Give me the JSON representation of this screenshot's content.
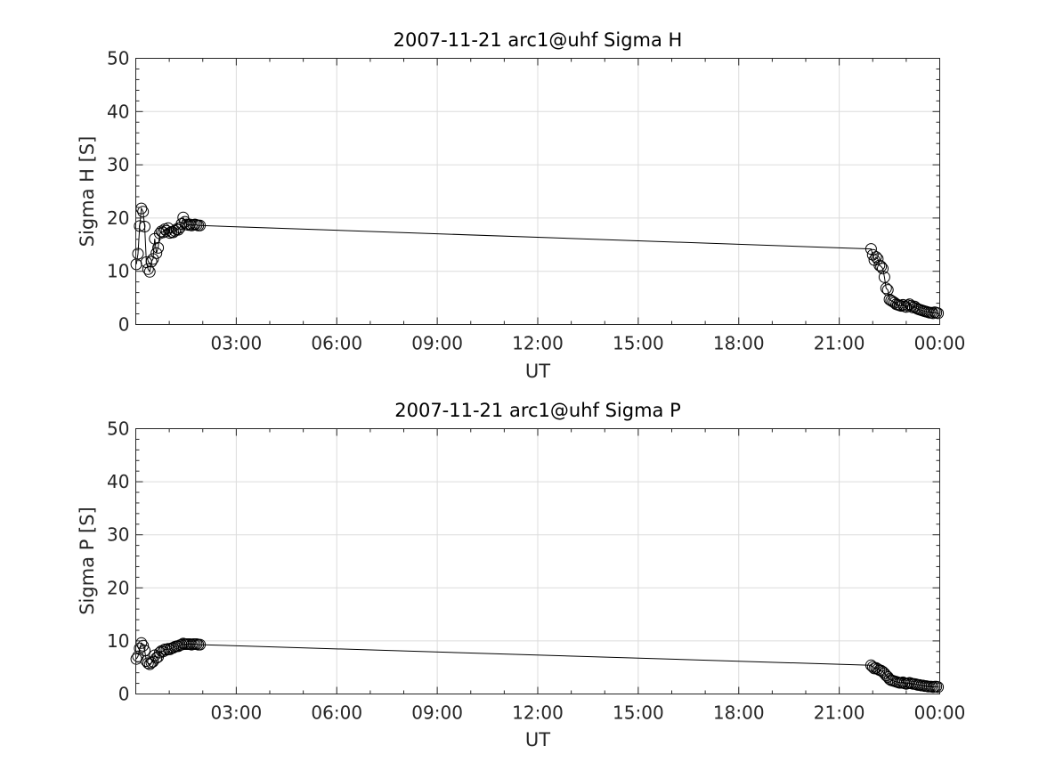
{
  "chart_data": [
    {
      "type": "line",
      "title": "2007-11-21  arc1@uhf Sigma H",
      "xlabel": "UT",
      "ylabel": "Sigma H [S]",
      "ylim": [
        0,
        50
      ],
      "yticks": [
        0,
        10,
        20,
        30,
        40,
        50
      ],
      "xlim": [
        "00:00",
        "24:00"
      ],
      "xticks": [
        "03:00",
        "06:00",
        "09:00",
        "12:00",
        "15:00",
        "18:00",
        "21:00",
        "00:00"
      ],
      "grid": true,
      "marker": "open-circle",
      "series": [
        {
          "x": [
            "00:01",
            "00:04",
            "00:07",
            "00:10",
            "00:13",
            "00:16",
            "00:19",
            "00:22",
            "00:25",
            "00:28",
            "00:31",
            "00:34",
            "00:37",
            "00:40",
            "00:43",
            "00:46",
            "00:49",
            "00:52",
            "00:55",
            "00:58",
            "01:01",
            "01:04",
            "01:07",
            "01:10",
            "01:13",
            "01:16",
            "01:19",
            "01:22",
            "01:25",
            "01:28",
            "01:31",
            "01:34",
            "01:37",
            "01:40",
            "01:43",
            "01:46",
            "01:49",
            "01:52",
            "01:55",
            "21:57",
            "22:00",
            "22:03",
            "22:06",
            "22:09",
            "22:12",
            "22:15",
            "22:18",
            "22:21",
            "22:24",
            "22:27",
            "22:30",
            "22:33",
            "22:36",
            "22:39",
            "22:42",
            "22:45",
            "22:48",
            "22:51",
            "22:54",
            "22:57",
            "23:00",
            "23:03",
            "23:06",
            "23:09",
            "23:12",
            "23:15",
            "23:18",
            "23:21",
            "23:24",
            "23:27",
            "23:30",
            "23:33",
            "23:36",
            "23:39",
            "23:42",
            "23:45",
            "23:48",
            "23:51",
            "23:54",
            "23:57"
          ],
          "y": [
            11.3,
            13.3,
            18.5,
            21.8,
            21.2,
            18.4,
            11.7,
            10.4,
            9.9,
            11.8,
            12.3,
            16.1,
            13.4,
            14.4,
            17.1,
            17.5,
            17.3,
            17.9,
            17.6,
            18.1,
            17.2,
            17.4,
            17.3,
            17.6,
            17.9,
            17.8,
            18.2,
            18.9,
            20.1,
            19.3,
            18.8,
            18.7,
            18.8,
            18.6,
            18.7,
            18.8,
            18.7,
            18.6,
            18.6,
            14.2,
            13.1,
            12.1,
            12.7,
            12.3,
            11.1,
            10.9,
            10.5,
            8.9,
            6.8,
            6.5,
            4.7,
            4.5,
            4.3,
            4.1,
            3.8,
            3.7,
            3.6,
            3.5,
            3.7,
            3.4,
            3.3,
            3.6,
            3.8,
            3.5,
            3.2,
            3.4,
            3.1,
            2.9,
            2.8,
            2.7,
            2.6,
            2.5,
            2.4,
            2.3,
            2.2,
            2.2,
            2.1,
            2.3,
            2.2,
            2.1
          ]
        }
      ]
    },
    {
      "type": "line",
      "title": "2007-11-21  arc1@uhf Sigma P",
      "xlabel": "UT",
      "ylabel": "Sigma P [S]",
      "ylim": [
        0,
        50
      ],
      "yticks": [
        0,
        10,
        20,
        30,
        40,
        50
      ],
      "xlim": [
        "00:00",
        "24:00"
      ],
      "xticks": [
        "03:00",
        "06:00",
        "09:00",
        "12:00",
        "15:00",
        "18:00",
        "21:00",
        "00:00"
      ],
      "grid": true,
      "marker": "open-circle",
      "series": [
        {
          "x": [
            "00:01",
            "00:04",
            "00:07",
            "00:10",
            "00:13",
            "00:16",
            "00:19",
            "00:22",
            "00:25",
            "00:28",
            "00:31",
            "00:34",
            "00:37",
            "00:40",
            "00:43",
            "00:46",
            "00:49",
            "00:52",
            "00:55",
            "00:58",
            "01:01",
            "01:04",
            "01:07",
            "01:10",
            "01:13",
            "01:16",
            "01:19",
            "01:22",
            "01:25",
            "01:28",
            "01:31",
            "01:34",
            "01:37",
            "01:40",
            "01:43",
            "01:46",
            "01:49",
            "01:52",
            "01:55",
            "21:57",
            "22:00",
            "22:03",
            "22:06",
            "22:09",
            "22:12",
            "22:15",
            "22:18",
            "22:21",
            "22:24",
            "22:27",
            "22:30",
            "22:33",
            "22:36",
            "22:39",
            "22:42",
            "22:45",
            "22:48",
            "22:51",
            "22:54",
            "22:57",
            "23:00",
            "23:03",
            "23:06",
            "23:09",
            "23:12",
            "23:15",
            "23:18",
            "23:21",
            "23:24",
            "23:27",
            "23:30",
            "23:33",
            "23:36",
            "23:39",
            "23:42",
            "23:45",
            "23:48",
            "23:51",
            "23:54",
            "23:57"
          ],
          "y": [
            6.6,
            7.1,
            8.6,
            9.6,
            9.1,
            8.2,
            6.2,
            5.8,
            5.6,
            5.9,
            6.1,
            7.3,
            6.8,
            7.0,
            7.8,
            8.1,
            8.0,
            8.4,
            8.3,
            8.5,
            8.4,
            8.6,
            8.7,
            8.9,
            9.0,
            9.0,
            9.2,
            9.3,
            9.5,
            9.4,
            9.4,
            9.4,
            9.4,
            9.3,
            9.4,
            9.4,
            9.4,
            9.3,
            9.3,
            5.4,
            5.1,
            4.8,
            4.9,
            4.7,
            4.5,
            4.4,
            4.2,
            3.9,
            3.5,
            3.2,
            2.8,
            2.6,
            2.5,
            2.4,
            2.3,
            2.2,
            2.1,
            2.1,
            2.2,
            2.0,
            1.9,
            2.0,
            2.1,
            2.0,
            1.9,
            1.9,
            1.8,
            1.7,
            1.7,
            1.6,
            1.6,
            1.5,
            1.5,
            1.4,
            1.4,
            1.4,
            1.3,
            1.4,
            1.4,
            1.3
          ]
        }
      ]
    }
  ]
}
